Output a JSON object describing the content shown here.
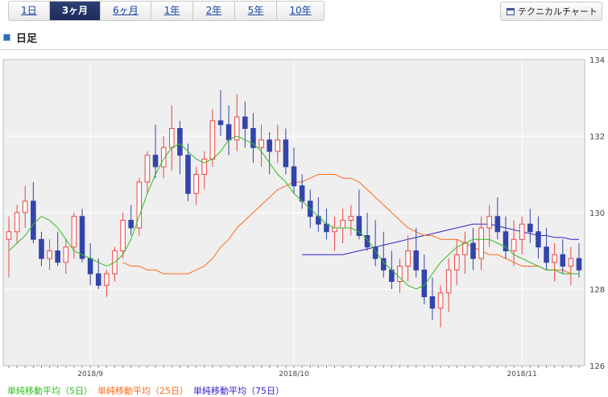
{
  "tabs": [
    {
      "label": "1日",
      "active": false
    },
    {
      "label": "3ヶ月",
      "active": true
    },
    {
      "label": "6ヶ月",
      "active": false
    },
    {
      "label": "1年",
      "active": false
    },
    {
      "label": "2年",
      "active": false
    },
    {
      "label": "5年",
      "active": false
    },
    {
      "label": "10年",
      "active": false
    }
  ],
  "tech_button": "テクニカルチャート",
  "heading": "日足",
  "legend": [
    {
      "label": "単純移動平均（5日）",
      "color": "#33bb22"
    },
    {
      "label": "単純移動平均（25日）",
      "color": "#ff6a1a"
    },
    {
      "label": "単純移動平均（75日）",
      "color": "#3322cc"
    }
  ],
  "chart_data": {
    "type": "candlestick",
    "ylim": [
      126,
      134
    ],
    "y_ticks": [
      126,
      128,
      130,
      132,
      134
    ],
    "x_tick_labels": [
      "2018/9",
      "2018/10",
      "2018/11"
    ],
    "x_tick_index": [
      10,
      35,
      63
    ],
    "colors": {
      "up": "#ee4444",
      "down": "#3344aa"
    },
    "candles": [
      [
        129.3,
        129.9,
        128.3,
        129.5
      ],
      [
        129.5,
        130.2,
        129.2,
        130.0
      ],
      [
        130.0,
        130.7,
        129.6,
        130.3
      ],
      [
        130.3,
        130.8,
        129.2,
        129.3
      ],
      [
        129.3,
        129.5,
        128.6,
        128.8
      ],
      [
        128.8,
        129.3,
        128.5,
        129.0
      ],
      [
        129.0,
        129.5,
        128.6,
        128.7
      ],
      [
        128.7,
        129.3,
        128.4,
        129.1
      ],
      [
        129.1,
        130.0,
        128.8,
        129.9
      ],
      [
        129.9,
        130.1,
        128.7,
        128.8
      ],
      [
        128.8,
        129.2,
        128.1,
        128.4
      ],
      [
        128.4,
        128.8,
        128.0,
        128.1
      ],
      [
        128.1,
        128.5,
        127.8,
        128.4
      ],
      [
        128.4,
        129.1,
        128.2,
        129.0
      ],
      [
        129.0,
        130.0,
        128.8,
        129.8
      ],
      [
        129.8,
        130.2,
        129.4,
        129.6
      ],
      [
        129.6,
        130.9,
        129.4,
        130.8
      ],
      [
        130.8,
        131.6,
        130.5,
        131.5
      ],
      [
        131.5,
        132.3,
        130.9,
        131.2
      ],
      [
        131.2,
        132.0,
        130.9,
        131.7
      ],
      [
        131.7,
        132.8,
        131.1,
        132.2
      ],
      [
        132.2,
        132.4,
        131.0,
        131.5
      ],
      [
        131.5,
        131.8,
        130.3,
        130.5
      ],
      [
        130.5,
        131.2,
        130.2,
        131.0
      ],
      [
        131.0,
        131.6,
        130.6,
        131.4
      ],
      [
        131.4,
        132.7,
        131.2,
        132.4
      ],
      [
        132.4,
        133.2,
        132.0,
        132.3
      ],
      [
        132.3,
        132.8,
        131.5,
        131.9
      ],
      [
        131.9,
        133.1,
        131.6,
        132.5
      ],
      [
        132.5,
        132.9,
        131.7,
        132.2
      ],
      [
        132.2,
        132.6,
        131.3,
        131.7
      ],
      [
        131.7,
        132.3,
        131.2,
        131.9
      ],
      [
        131.9,
        132.1,
        131.0,
        131.6
      ],
      [
        131.6,
        132.3,
        131.3,
        131.9
      ],
      [
        131.9,
        132.2,
        131.0,
        131.2
      ],
      [
        131.2,
        131.7,
        130.5,
        130.7
      ],
      [
        130.7,
        131.0,
        130.1,
        130.3
      ],
      [
        130.3,
        130.6,
        129.6,
        129.9
      ],
      [
        129.9,
        130.4,
        129.5,
        129.7
      ],
      [
        129.7,
        130.1,
        129.3,
        129.5
      ],
      [
        129.5,
        129.9,
        129.0,
        129.6
      ],
      [
        129.6,
        130.1,
        129.2,
        129.8
      ],
      [
        129.8,
        130.2,
        129.4,
        129.9
      ],
      [
        129.9,
        130.6,
        129.3,
        129.4
      ],
      [
        129.4,
        130.0,
        129.0,
        129.1
      ],
      [
        129.1,
        129.8,
        128.6,
        128.8
      ],
      [
        128.8,
        129.5,
        128.3,
        128.5
      ],
      [
        128.5,
        129.0,
        128.0,
        128.2
      ],
      [
        128.2,
        128.8,
        127.9,
        128.6
      ],
      [
        128.6,
        129.4,
        128.2,
        129.0
      ],
      [
        129.0,
        129.6,
        128.3,
        128.5
      ],
      [
        128.5,
        128.9,
        127.6,
        127.8
      ],
      [
        127.8,
        128.3,
        127.2,
        127.5
      ],
      [
        127.5,
        128.1,
        127.0,
        127.9
      ],
      [
        127.9,
        128.8,
        127.4,
        128.5
      ],
      [
        128.5,
        129.3,
        128.1,
        128.9
      ],
      [
        128.9,
        129.5,
        128.4,
        129.2
      ],
      [
        129.2,
        129.6,
        128.5,
        128.8
      ],
      [
        128.8,
        129.9,
        128.5,
        129.6
      ],
      [
        129.6,
        130.2,
        129.1,
        129.9
      ],
      [
        129.9,
        130.4,
        129.3,
        129.5
      ],
      [
        129.5,
        129.9,
        128.8,
        129.0
      ],
      [
        129.0,
        129.8,
        128.6,
        129.3
      ],
      [
        129.3,
        129.9,
        128.9,
        129.7
      ],
      [
        129.7,
        130.1,
        129.2,
        129.5
      ],
      [
        129.5,
        129.9,
        128.8,
        129.1
      ],
      [
        129.1,
        129.6,
        128.5,
        128.7
      ],
      [
        128.7,
        129.2,
        128.2,
        128.9
      ],
      [
        128.9,
        129.3,
        128.4,
        128.6
      ],
      [
        128.6,
        129.1,
        128.1,
        128.8
      ],
      [
        128.8,
        129.2,
        128.3,
        128.5
      ]
    ],
    "sma5": [
      129.0,
      129.2,
      129.4,
      129.7,
      129.9,
      129.8,
      129.6,
      129.3,
      129.0,
      128.9,
      128.8,
      128.7,
      128.6,
      128.7,
      128.9,
      129.3,
      129.9,
      130.5,
      131.0,
      131.4,
      131.7,
      131.8,
      131.6,
      131.4,
      131.3,
      131.4,
      131.6,
      131.9,
      132.0,
      131.9,
      131.8,
      131.6,
      131.3,
      131.0,
      130.8,
      130.5,
      130.3,
      130.1,
      129.9,
      129.7,
      129.6,
      129.6,
      129.6,
      129.5,
      129.3,
      129.0,
      128.7,
      128.5,
      128.3,
      128.1,
      128.0,
      128.1,
      128.4,
      128.7,
      128.9,
      129.1,
      129.2,
      129.3,
      129.3,
      129.3,
      129.2,
      129.1,
      128.9,
      128.8,
      128.7,
      128.6,
      128.5,
      128.5,
      128.4,
      128.4,
      128.4
    ],
    "sma25": [
      128.7,
      128.6,
      128.6,
      128.5,
      128.5,
      128.4,
      128.4,
      128.4,
      128.4,
      128.5,
      128.6,
      128.8,
      129.1,
      129.3,
      129.6,
      129.8,
      130.0,
      130.2,
      130.4,
      130.6,
      130.7,
      130.8,
      130.8,
      130.9,
      131.0,
      131.0,
      131.0,
      130.9,
      130.9,
      130.8,
      130.6,
      130.4,
      130.2,
      130.0,
      129.8,
      129.6,
      129.5,
      129.4,
      129.4,
      129.3,
      129.3,
      129.3,
      129.2,
      129.1,
      129.0,
      128.9,
      128.9,
      128.8,
      128.7,
      128.6,
      128.6,
      128.6,
      128.5,
      128.5,
      128.5,
      128.4,
      128.4
    ],
    "sma75": [
      128.9,
      128.9,
      128.9,
      128.9,
      128.9,
      128.9,
      128.95,
      129.0,
      129.05,
      129.1,
      129.15,
      129.2,
      129.25,
      129.3,
      129.35,
      129.4,
      129.45,
      129.5,
      129.55,
      129.6,
      129.65,
      129.7,
      129.7,
      129.7,
      129.65,
      129.6,
      129.55,
      129.5,
      129.45,
      129.4,
      129.4,
      129.35,
      129.35,
      129.3,
      129.3
    ]
  }
}
